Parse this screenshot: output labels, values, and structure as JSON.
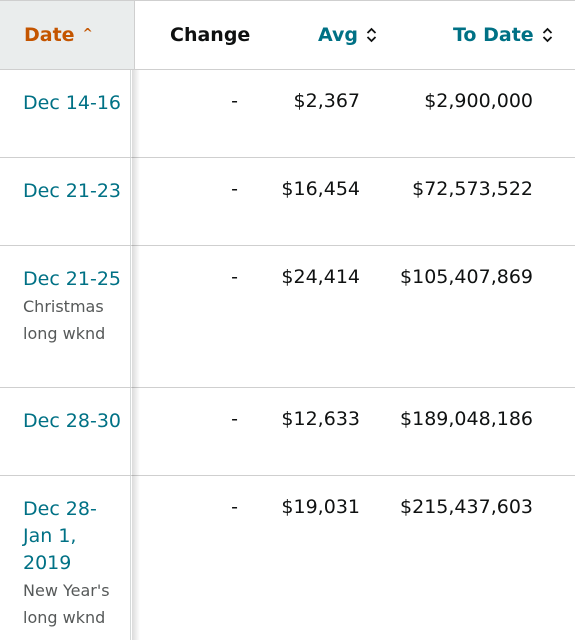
{
  "header": {
    "date_label": "Date",
    "change_label": "Change",
    "avg_label": "Avg",
    "todate_label": "To Date",
    "date_sort": "^"
  },
  "colors": {
    "active_sort": "#c45500",
    "link": "#007185",
    "header_bg": "#eaeded",
    "note": "#565959"
  },
  "rows": [
    {
      "date": "Dec 14-16",
      "note": "",
      "change": "-",
      "avg": "$2,367",
      "to_date": "$2,900,000"
    },
    {
      "date": "Dec 21-23",
      "note": "",
      "change": "-",
      "avg": "$16,454",
      "to_date": "$72,573,522"
    },
    {
      "date": "Dec 21-25",
      "note": "Christmas long wknd",
      "change": "-",
      "avg": "$24,414",
      "to_date": "$105,407,869"
    },
    {
      "date": "Dec 28-30",
      "note": "",
      "change": "-",
      "avg": "$12,633",
      "to_date": "$189,048,186"
    },
    {
      "date": "Dec 28-Jan 1, 2019",
      "note": "New Year's long wknd",
      "change": "-",
      "avg": "$19,031",
      "to_date": "$215,437,603"
    }
  ]
}
